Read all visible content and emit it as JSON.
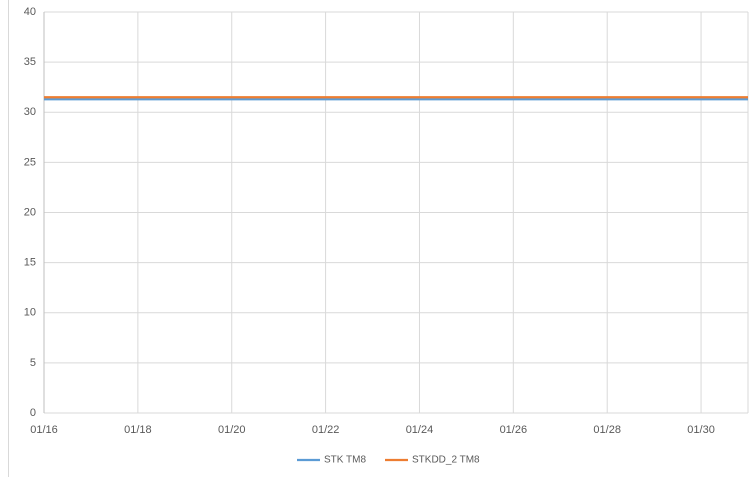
{
  "chart_data": {
    "type": "line",
    "categories": [
      "01/16",
      null,
      "01/18",
      null,
      "01/20",
      null,
      "01/22",
      null,
      "01/24",
      null,
      "01/26",
      null,
      "01/28",
      null,
      "01/30",
      null
    ],
    "series": [
      {
        "name": "STK TM8",
        "color": "#5b9bd5",
        "values": [
          31.3,
          31.3,
          31.3,
          31.3,
          31.3,
          31.3,
          31.3,
          31.3,
          31.3,
          31.3,
          31.3,
          31.3,
          31.3,
          31.3,
          31.3,
          31.3
        ]
      },
      {
        "name": "STKDD_2 TM8",
        "color": "#ed7d31",
        "values": [
          31.5,
          31.5,
          31.5,
          31.5,
          31.5,
          31.5,
          31.5,
          31.5,
          31.5,
          31.5,
          31.5,
          31.5,
          31.5,
          31.5,
          31.5,
          31.5
        ]
      }
    ],
    "ylim": [
      0,
      40
    ],
    "yticks": [
      0,
      5,
      10,
      15,
      20,
      25,
      30,
      35,
      40
    ],
    "grid": true,
    "legend": "bottom"
  }
}
